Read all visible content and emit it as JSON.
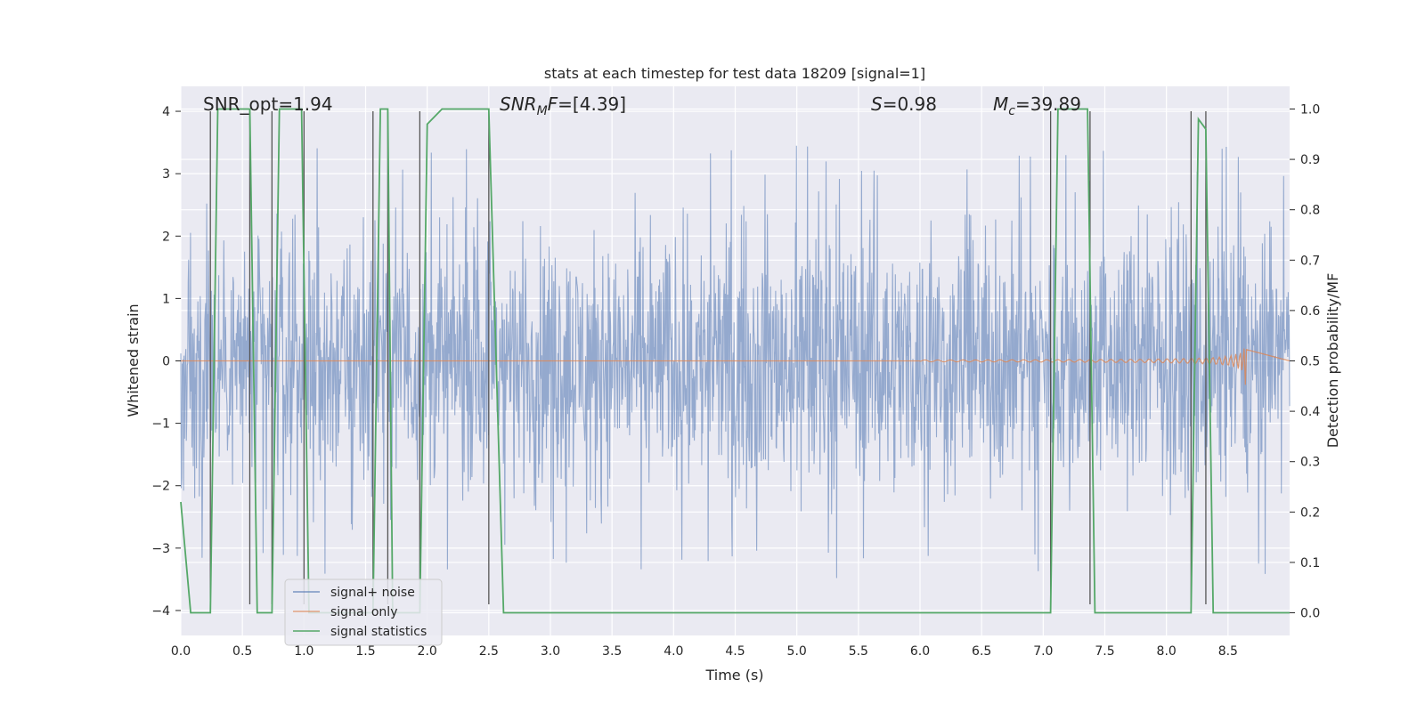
{
  "chart_data": {
    "type": "line",
    "title": "stats at each timestep for test data 18209 [signal=1]",
    "xlabel": "Time (s)",
    "ylabel": "Whitened strain",
    "y2label": "Detection probability/MF",
    "xlim": [
      0,
      9.0
    ],
    "ylim": [
      -4.4,
      4.4
    ],
    "y2lim": [
      -0.045,
      1.045
    ],
    "x_ticks": [
      0.0,
      0.5,
      1.0,
      1.5,
      2.0,
      2.5,
      3.0,
      3.5,
      4.0,
      4.5,
      5.0,
      5.5,
      6.0,
      6.5,
      7.0,
      7.5,
      8.0,
      8.5
    ],
    "x_tick_labels": [
      "0.0",
      "0.5",
      "1.0",
      "1.5",
      "2.0",
      "2.5",
      "3.0",
      "3.5",
      "4.0",
      "4.5",
      "5.0",
      "5.5",
      "6.0",
      "6.5",
      "7.0",
      "7.5",
      "8.0",
      "8.5"
    ],
    "y_ticks": [
      -4,
      -3,
      -2,
      -1,
      0,
      1,
      2,
      3,
      4
    ],
    "y_tick_labels": [
      "−4",
      "−3",
      "−2",
      "−1",
      "0",
      "1",
      "2",
      "3",
      "4"
    ],
    "y2_ticks": [
      0.0,
      0.1,
      0.2,
      0.3,
      0.4,
      0.5,
      0.6,
      0.7,
      0.8,
      0.9,
      1.0
    ],
    "y2_tick_labels": [
      "0.0",
      "0.1",
      "0.2",
      "0.3",
      "0.4",
      "0.5",
      "0.6",
      "0.7",
      "0.8",
      "0.9",
      "1.0"
    ],
    "grid": true,
    "legend_position": "lower-left",
    "annotations": {
      "snr_opt": "SNR_opt=1.94",
      "snr_mf": "=[4.39]",
      "snr_mf_label": "SNR",
      "snr_mf_sub": "M",
      "snr_mf_var": "F",
      "s_label": "S",
      "s_value": "=0.98",
      "mc_label": "M",
      "mc_sub": "c",
      "mc_value": "=39.89"
    },
    "series": [
      {
        "name": "signal+ noise",
        "color": "#4c72b0",
        "description_values": "noise band approx ±1.6 with spikes up to ±3.5"
      },
      {
        "name": "signal only",
        "color": "#dd8452",
        "chirp_end_x": 8.65,
        "chirp_peak_amplitude": 0.5
      },
      {
        "name": "signal statistics",
        "color": "#55a868",
        "axis": "y2",
        "points": [
          [
            0.0,
            0.22
          ],
          [
            0.08,
            0.0
          ],
          [
            0.24,
            0.0
          ],
          [
            0.3,
            1.0
          ],
          [
            0.56,
            1.0
          ],
          [
            0.62,
            0.0
          ],
          [
            0.74,
            0.0
          ],
          [
            0.8,
            1.0
          ],
          [
            0.98,
            1.0
          ],
          [
            1.04,
            0.0
          ],
          [
            1.56,
            0.0
          ],
          [
            1.62,
            1.0
          ],
          [
            1.68,
            1.0
          ],
          [
            1.72,
            0.0
          ],
          [
            1.94,
            0.0
          ],
          [
            2.0,
            0.97
          ],
          [
            2.12,
            1.0
          ],
          [
            2.5,
            1.0
          ],
          [
            2.62,
            0.0
          ],
          [
            7.06,
            0.0
          ],
          [
            7.12,
            1.0
          ],
          [
            7.36,
            1.0
          ],
          [
            7.42,
            0.0
          ],
          [
            8.2,
            0.0
          ],
          [
            8.26,
            0.98
          ],
          [
            8.32,
            0.96
          ],
          [
            8.38,
            0.0
          ],
          [
            9.0,
            0.0
          ]
        ]
      }
    ],
    "detection_markers_x": [
      0.24,
      0.56,
      0.74,
      1.0,
      1.56,
      1.68,
      1.94,
      2.5,
      7.06,
      7.38,
      8.2,
      8.32
    ],
    "legend": [
      "signal+ noise",
      "signal only",
      "signal statistics"
    ]
  }
}
